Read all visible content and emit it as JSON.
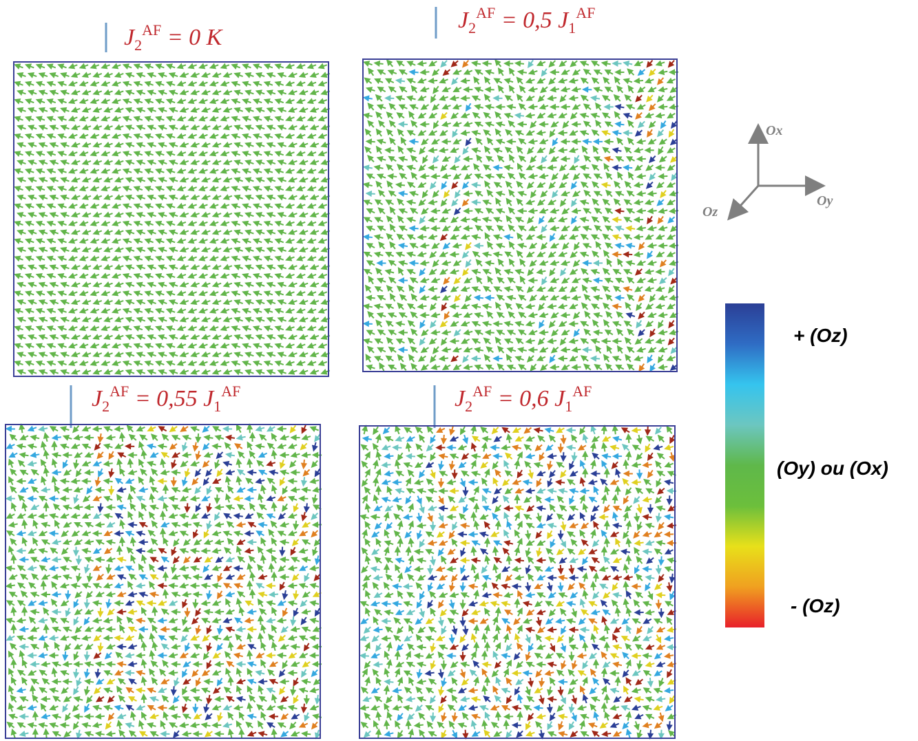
{
  "panels": [
    {
      "title": [
        {
          "text": "J",
          "pos": "base"
        },
        {
          "text": "2",
          "pos": "sub"
        },
        {
          "text": "AF",
          "pos": "sup"
        },
        {
          "text": " = 0 K",
          "pos": "base"
        }
      ]
    },
    {
      "title": [
        {
          "text": "J",
          "pos": "base"
        },
        {
          "text": "2",
          "pos": "sub"
        },
        {
          "text": "AF",
          "pos": "sup"
        },
        {
          "text": " = 0,5 J",
          "pos": "base"
        },
        {
          "text": "1",
          "pos": "sub"
        },
        {
          "text": "AF",
          "pos": "sup"
        }
      ]
    },
    {
      "title": [
        {
          "text": "J",
          "pos": "base"
        },
        {
          "text": "2",
          "pos": "sub"
        },
        {
          "text": "AF",
          "pos": "sup"
        },
        {
          "text": " = 0,55 J",
          "pos": "base"
        },
        {
          "text": "1",
          "pos": "sub"
        },
        {
          "text": "AF",
          "pos": "sup"
        }
      ]
    },
    {
      "title": [
        {
          "text": "J",
          "pos": "base"
        },
        {
          "text": "2",
          "pos": "sub"
        },
        {
          "text": "AF",
          "pos": "sup"
        },
        {
          "text": " = 0,6 J",
          "pos": "base"
        },
        {
          "text": "1",
          "pos": "sub"
        },
        {
          "text": "AF",
          "pos": "sup"
        }
      ]
    }
  ],
  "axes": {
    "x": "Ox",
    "y": "Oy",
    "z": "Oz"
  },
  "colorbar": {
    "colors": [
      "#2b3f96",
      "#2f6cc4",
      "#35c4ee",
      "#6cc6c0",
      "#5fb84a",
      "#6cbf3c",
      "#e8e01a",
      "#f0a020",
      "#e8202a"
    ],
    "labels": [
      "+ (Oz)",
      "(Oy) ou (Ox)",
      "- (Oz)"
    ]
  }
}
